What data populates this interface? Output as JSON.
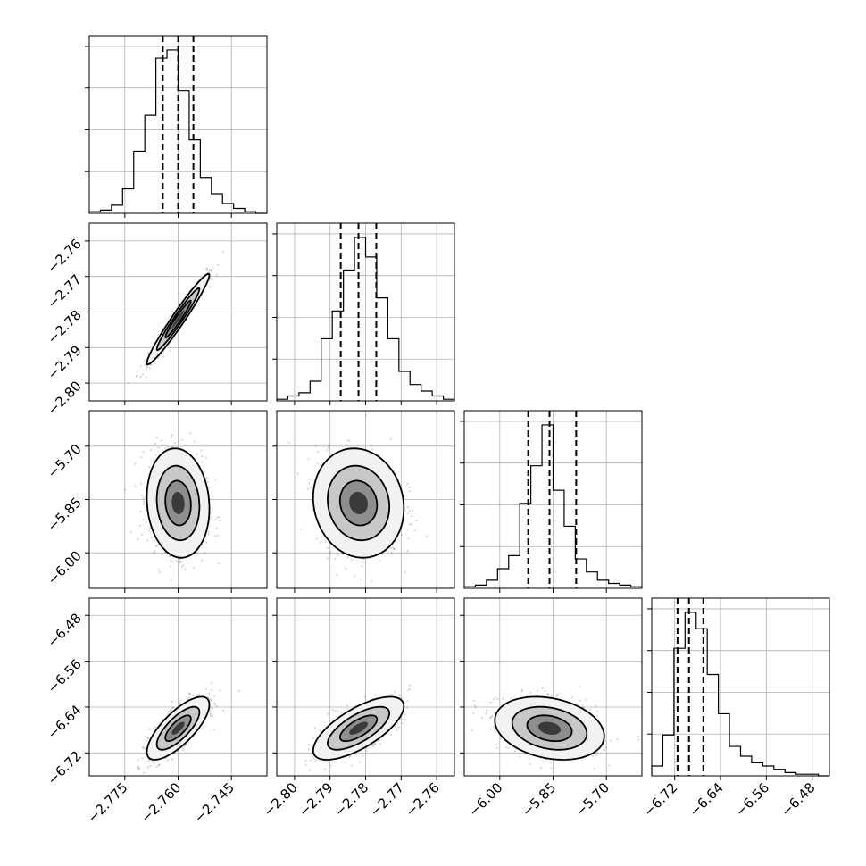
{
  "chart_data": {
    "type": "scatter",
    "variant": "corner-plot",
    "grid": true,
    "params": [
      {
        "mean": -2.76,
        "sd": 0.004,
        "range": [
          -2.785,
          -2.735
        ],
        "ticks": [
          -2.775,
          -2.76,
          -2.745
        ],
        "tick_labels": [
          "−2.775",
          "−2.760",
          "−2.745"
        ],
        "quantiles": [
          -2.7643,
          -2.76,
          -2.7557
        ]
      },
      {
        "mean": -2.782,
        "sd": 0.0058,
        "range": [
          -2.805,
          -2.755
        ],
        "ticks": [
          -2.8,
          -2.79,
          -2.78,
          -2.77,
          -2.76
        ],
        "tick_labels": [
          "−2.80",
          "−2.79",
          "−2.78",
          "−2.77",
          "−2.76"
        ],
        "quantiles": [
          -2.787,
          -2.782,
          -2.777
        ]
      },
      {
        "mean": -5.86,
        "sd": 0.07,
        "range": [
          -6.1,
          -5.6
        ],
        "ticks": [
          -6.0,
          -5.85,
          -5.7
        ],
        "tick_labels": [
          "−6.00",
          "−5.85",
          "−5.70"
        ],
        "quantiles": [
          -5.92,
          -5.86,
          -5.785
        ]
      },
      {
        "mean": -6.677,
        "sd": 0.025,
        "range": [
          -6.76,
          -6.45
        ],
        "ticks": [
          -6.72,
          -6.64,
          -6.56,
          -6.48
        ],
        "tick_labels": [
          "−6.72",
          "−6.64",
          "−6.56",
          "−6.48"
        ],
        "quantiles": [
          -6.715,
          -6.695,
          -6.67
        ]
      }
    ],
    "correlations": [
      [
        1.0,
        0.97,
        -0.1,
        0.75
      ],
      [
        0.97,
        1.0,
        -0.1,
        0.7
      ],
      [
        -0.1,
        -0.1,
        1.0,
        -0.25
      ],
      [
        0.75,
        0.7,
        -0.25,
        1.0
      ]
    ],
    "histograms": [
      [
        0.01,
        0.02,
        0.05,
        0.15,
        0.38,
        0.6,
        0.95,
        1.0,
        0.75,
        0.45,
        0.22,
        0.12,
        0.06,
        0.03,
        0.01,
        0.0
      ],
      [
        0.01,
        0.03,
        0.05,
        0.12,
        0.38,
        0.55,
        0.8,
        1.0,
        0.88,
        0.63,
        0.38,
        0.18,
        0.1,
        0.06,
        0.03,
        0.01
      ],
      [
        0.01,
        0.02,
        0.05,
        0.12,
        0.2,
        0.52,
        0.75,
        1.0,
        0.6,
        0.38,
        0.18,
        0.1,
        0.05,
        0.03,
        0.02,
        0.01
      ],
      [
        0.06,
        0.25,
        0.78,
        1.0,
        0.9,
        0.62,
        0.38,
        0.18,
        0.12,
        0.08,
        0.06,
        0.04,
        0.02,
        0.01,
        0.01,
        0.0
      ]
    ]
  }
}
